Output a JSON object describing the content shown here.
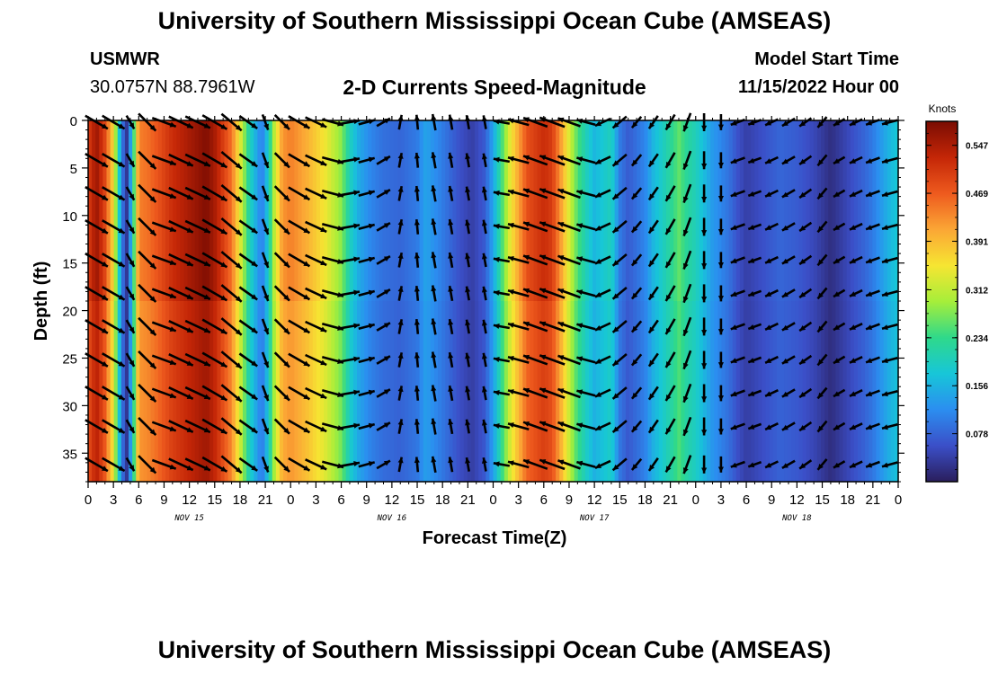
{
  "header": {
    "title": "University of Southern Mississippi Ocean Cube (AMSEAS)",
    "station": "USMWR",
    "coordinates": "30.0757N  88.7961W",
    "subtitle": "2-D Currents Speed-Magnitude",
    "model_start_label": "Model Start Time",
    "model_start_value": "11/15/2022 Hour 00"
  },
  "footer": {
    "title": "University of Southern Mississippi Ocean Cube (AMSEAS)"
  },
  "chart_data": {
    "type": "heatmap",
    "title": "2-D Currents Speed-Magnitude",
    "xlabel": "Forecast Time(Z)",
    "ylabel": "Depth (ft)",
    "x_range_hours": [
      0,
      96
    ],
    "y_range_ft": [
      0,
      38
    ],
    "y_inverted": true,
    "x_ticks": [
      "0",
      "3",
      "6",
      "9",
      "12",
      "15",
      "18",
      "21",
      "0",
      "3",
      "6",
      "9",
      "12",
      "15",
      "18",
      "21",
      "0",
      "3",
      "6",
      "9",
      "12",
      "15",
      "18",
      "21",
      "0",
      "3",
      "6",
      "9",
      "12",
      "15",
      "18",
      "21",
      "0"
    ],
    "x_tick_step_hours": 3,
    "day_labels": [
      {
        "label": "NOV 15",
        "hour": 12
      },
      {
        "label": "NOV 16",
        "hour": 36
      },
      {
        "label": "NOV 17",
        "hour": 60
      },
      {
        "label": "NOV 18",
        "hour": 84
      }
    ],
    "y_ticks": [
      0,
      5,
      10,
      15,
      20,
      25,
      30,
      35
    ],
    "colorbar": {
      "title": "Knots",
      "range": [
        0.0,
        0.586
      ],
      "tick_values": [
        0.547,
        0.469,
        0.391,
        0.312,
        0.234,
        0.156,
        0.078
      ],
      "tick_labels": [
        "0.547",
        "0.469",
        "0.391",
        "0.312",
        "0.234",
        "0.156",
        "0.078"
      ],
      "stops": [
        "#2a1e5c",
        "#3b4fc8",
        "#2b8ef0",
        "#17c6d8",
        "#2fd98a",
        "#a6ee3a",
        "#f6e532",
        "#fba635",
        "#ee5a1e",
        "#c42607",
        "#7a0c02"
      ]
    },
    "speed_profile": {
      "description": "current speed (knots) vs forecast hour, nearly uniform with depth",
      "hours": [
        0,
        1,
        2,
        3,
        4,
        4.6,
        5.3,
        6,
        7,
        8,
        10,
        12,
        14,
        15,
        17,
        18,
        19,
        20,
        20.6,
        21.3,
        22,
        23,
        24,
        26,
        28,
        30,
        31,
        32,
        33.5,
        35,
        37,
        39,
        40,
        41,
        42.5,
        44,
        45.5,
        47,
        48,
        50,
        52,
        54,
        55,
        56,
        57,
        58,
        59,
        60,
        62,
        63,
        64,
        65,
        66,
        67,
        69,
        70,
        71,
        72,
        74,
        76,
        77,
        78,
        80,
        82,
        84,
        86,
        88,
        90,
        92,
        93,
        94,
        95,
        96
      ],
      "speeds": [
        0.5,
        0.56,
        0.49,
        0.36,
        0.1,
        0.03,
        0.2,
        0.44,
        0.45,
        0.47,
        0.52,
        0.55,
        0.58,
        0.55,
        0.45,
        0.34,
        0.22,
        0.14,
        0.1,
        0.18,
        0.3,
        0.42,
        0.44,
        0.4,
        0.35,
        0.28,
        0.2,
        0.15,
        0.11,
        0.09,
        0.08,
        0.1,
        0.14,
        0.12,
        0.09,
        0.06,
        0.04,
        0.07,
        0.14,
        0.34,
        0.48,
        0.52,
        0.5,
        0.42,
        0.33,
        0.25,
        0.2,
        0.16,
        0.2,
        0.1,
        0.07,
        0.09,
        0.11,
        0.16,
        0.22,
        0.26,
        0.22,
        0.2,
        0.13,
        0.09,
        0.06,
        0.04,
        0.06,
        0.08,
        0.07,
        0.05,
        0.02,
        0.05,
        0.08,
        0.1,
        0.13,
        0.16,
        0.18
      ]
    },
    "vectors": {
      "description": "direction (degrees, 0 = east, positive = counter-clockwise / northward) of current arrows vs forecast hour",
      "hours": [
        0,
        2,
        4,
        6,
        8,
        10,
        12,
        14,
        16,
        18,
        20,
        22,
        24,
        26,
        28,
        30,
        32,
        34,
        36,
        38,
        40,
        42,
        44,
        46,
        48,
        50,
        52,
        54,
        56,
        58,
        60,
        62,
        64,
        66,
        68,
        70,
        72,
        74,
        76,
        78,
        80,
        82,
        84,
        86,
        88,
        90,
        92,
        94,
        96
      ],
      "direction_deg": [
        -30,
        -30,
        -60,
        -45,
        -20,
        -25,
        -25,
        -30,
        -40,
        -35,
        -70,
        -45,
        -30,
        -25,
        -15,
        10,
        15,
        30,
        80,
        95,
        100,
        100,
        100,
        100,
        170,
        165,
        160,
        160,
        160,
        165,
        205,
        220,
        230,
        235,
        240,
        250,
        270,
        270,
        200,
        200,
        205,
        210,
        215,
        230,
        210,
        205,
        200,
        195,
        190
      ]
    },
    "depth_levels_ft": [
      0,
      4,
      7.5,
      11,
      14.5,
      18,
      21.5,
      25,
      28.5,
      32,
      36
    ]
  }
}
